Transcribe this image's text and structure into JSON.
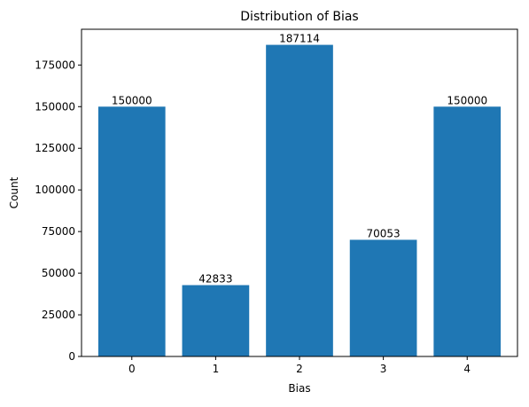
{
  "chart_data": {
    "type": "bar",
    "title": "Distribution of Bias",
    "xlabel": "Bias",
    "ylabel": "Count",
    "categories": [
      "0",
      "1",
      "2",
      "3",
      "4"
    ],
    "values": [
      150000,
      42833,
      187114,
      70053,
      150000
    ],
    "data_labels": [
      "150000",
      "42833",
      "187114",
      "70053",
      "150000"
    ],
    "ylim": [
      0,
      196470
    ],
    "yticks": [
      0,
      25000,
      50000,
      75000,
      100000,
      125000,
      150000,
      175000
    ],
    "ytick_labels": [
      "0",
      "25000",
      "50000",
      "75000",
      "100000",
      "125000",
      "150000",
      "175000"
    ],
    "bar_color": "#1f77b4",
    "grid": false,
    "legend": "none"
  }
}
